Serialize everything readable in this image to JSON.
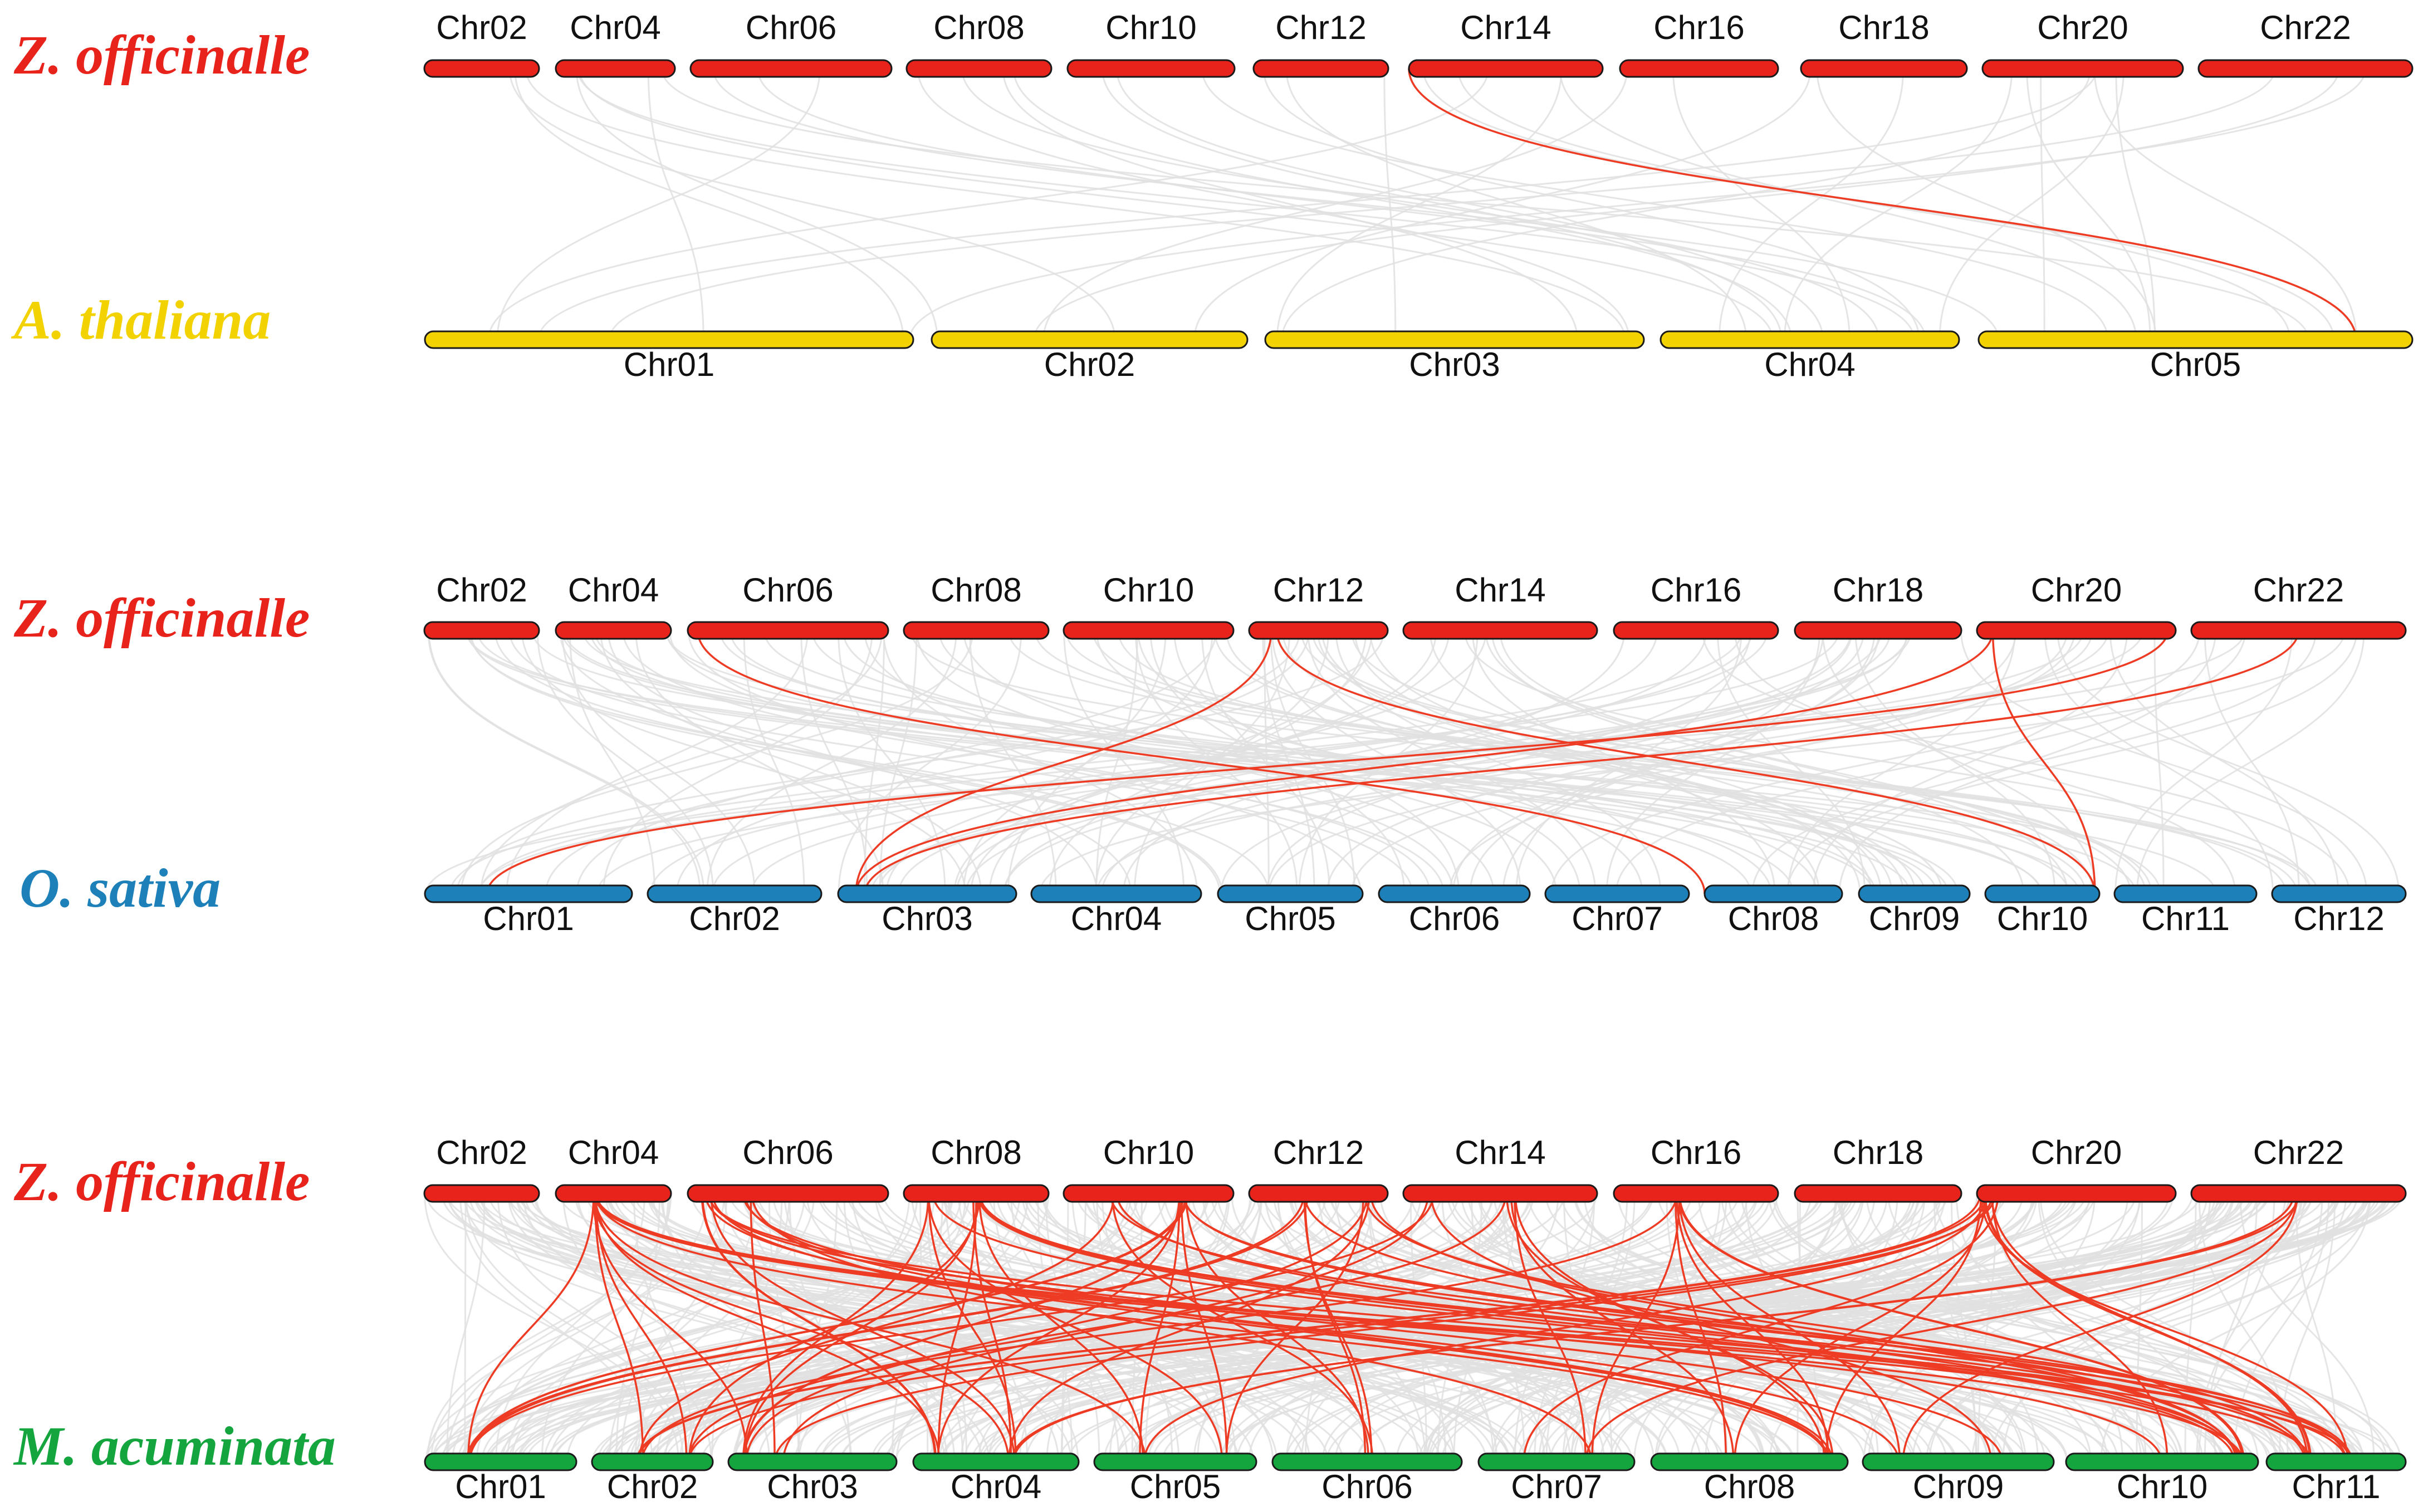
{
  "figure_title": "",
  "colors": {
    "zingiber": "#e8231c",
    "arabidopsis": "#f2d200",
    "oryza": "#1d80b8",
    "musa": "#14a53f",
    "background_link": "#e0e0e0",
    "highlight_link": "#ee3b24"
  },
  "panels": [
    {
      "id": "at",
      "top_species": "Z. officinalle",
      "bottom_species": "A. thaliana",
      "top_color": "#e8231c",
      "bottom_color": "#f2d200",
      "top_chromosomes": [
        "Chr02",
        "Chr04",
        "Chr06",
        "Chr08",
        "Chr10",
        "Chr12",
        "Chr14",
        "Chr16",
        "Chr18",
        "Chr20",
        "Chr22"
      ],
      "bottom_chromosomes": [
        "Chr01",
        "Chr02",
        "Chr03",
        "Chr04",
        "Chr05"
      ]
    },
    {
      "id": "os",
      "top_species": "Z. officinalle",
      "bottom_species": "O. sativa",
      "top_color": "#e8231c",
      "bottom_color": "#1d80b8",
      "top_chromosomes": [
        "Chr02",
        "Chr04",
        "Chr06",
        "Chr08",
        "Chr10",
        "Chr12",
        "Chr14",
        "Chr16",
        "Chr18",
        "Chr20",
        "Chr22"
      ],
      "bottom_chromosomes": [
        "Chr01",
        "Chr02",
        "Chr03",
        "Chr04",
        "Chr05",
        "Chr06",
        "Chr07",
        "Chr08",
        "Chr09",
        "Chr10",
        "Chr11",
        "Chr12"
      ]
    },
    {
      "id": "ma",
      "top_species": "Z. officinalle",
      "bottom_species": "M. acuminata",
      "top_color": "#e8231c",
      "bottom_color": "#14a53f",
      "top_chromosomes": [
        "Chr02",
        "Chr04",
        "Chr06",
        "Chr08",
        "Chr10",
        "Chr12",
        "Chr14",
        "Chr16",
        "Chr18",
        "Chr20",
        "Chr22"
      ],
      "bottom_chromosomes": [
        "Chr01",
        "Chr02",
        "Chr03",
        "Chr04",
        "Chr05",
        "Chr06",
        "Chr07",
        "Chr08",
        "Chr09",
        "Chr10",
        "Chr11"
      ]
    }
  ]
}
